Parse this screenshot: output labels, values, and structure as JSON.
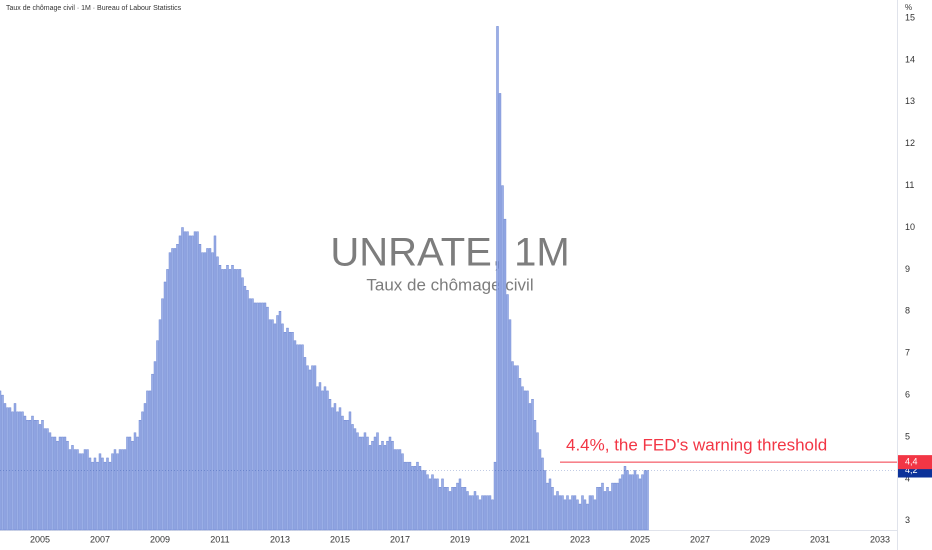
{
  "chart_data": {
    "type": "bar",
    "header": "Taux de chômage civil · 1M · Bureau of Labour Statistics",
    "title": "UNRATE, 1M",
    "subtitle": "Taux de chômage civil",
    "y_unit": "%",
    "color": "#9aaee6",
    "edge_color": "#5d78cc",
    "grid": false,
    "xlim": [
      2003.667,
      2033.567
    ],
    "xticks": [
      2005,
      2007,
      2009,
      2011,
      2013,
      2015,
      2017,
      2019,
      2021,
      2023,
      2025,
      2027,
      2029,
      2031,
      2033
    ],
    "ylim": [
      2.78,
      15.43
    ],
    "yticks": [
      3,
      4,
      5,
      6,
      7,
      8,
      9,
      10,
      11,
      12,
      13,
      14,
      15
    ],
    "x": [
      2003.667,
      2003.75,
      2003.833,
      2003.917,
      2004,
      2004.083,
      2004.167,
      2004.25,
      2004.333,
      2004.417,
      2004.5,
      2004.583,
      2004.667,
      2004.75,
      2004.833,
      2004.917,
      2005,
      2005.083,
      2005.167,
      2005.25,
      2005.333,
      2005.417,
      2005.5,
      2005.583,
      2005.667,
      2005.75,
      2005.833,
      2005.917,
      2006,
      2006.083,
      2006.167,
      2006.25,
      2006.333,
      2006.417,
      2006.5,
      2006.583,
      2006.667,
      2006.75,
      2006.833,
      2006.917,
      2007,
      2007.083,
      2007.167,
      2007.25,
      2007.333,
      2007.417,
      2007.5,
      2007.583,
      2007.667,
      2007.75,
      2007.833,
      2007.917,
      2008,
      2008.083,
      2008.167,
      2008.25,
      2008.333,
      2008.417,
      2008.5,
      2008.583,
      2008.667,
      2008.75,
      2008.833,
      2008.917,
      2009,
      2009.083,
      2009.167,
      2009.25,
      2009.333,
      2009.417,
      2009.5,
      2009.583,
      2009.667,
      2009.75,
      2009.833,
      2009.917,
      2010,
      2010.083,
      2010.167,
      2010.25,
      2010.333,
      2010.417,
      2010.5,
      2010.583,
      2010.667,
      2010.75,
      2010.833,
      2010.917,
      2011,
      2011.083,
      2011.167,
      2011.25,
      2011.333,
      2011.417,
      2011.5,
      2011.583,
      2011.667,
      2011.75,
      2011.833,
      2011.917,
      2012,
      2012.083,
      2012.167,
      2012.25,
      2012.333,
      2012.417,
      2012.5,
      2012.583,
      2012.667,
      2012.75,
      2012.833,
      2012.917,
      2013,
      2013.083,
      2013.167,
      2013.25,
      2013.333,
      2013.417,
      2013.5,
      2013.583,
      2013.667,
      2013.75,
      2013.833,
      2013.917,
      2014,
      2014.083,
      2014.167,
      2014.25,
      2014.333,
      2014.417,
      2014.5,
      2014.583,
      2014.667,
      2014.75,
      2014.833,
      2014.917,
      2015,
      2015.083,
      2015.167,
      2015.25,
      2015.333,
      2015.417,
      2015.5,
      2015.583,
      2015.667,
      2015.75,
      2015.833,
      2015.917,
      2016,
      2016.083,
      2016.167,
      2016.25,
      2016.333,
      2016.417,
      2016.5,
      2016.583,
      2016.667,
      2016.75,
      2016.833,
      2016.917,
      2017,
      2017.083,
      2017.167,
      2017.25,
      2017.333,
      2017.417,
      2017.5,
      2017.583,
      2017.667,
      2017.75,
      2017.833,
      2017.917,
      2018,
      2018.083,
      2018.167,
      2018.25,
      2018.333,
      2018.417,
      2018.5,
      2018.583,
      2018.667,
      2018.75,
      2018.833,
      2018.917,
      2019,
      2019.083,
      2019.167,
      2019.25,
      2019.333,
      2019.417,
      2019.5,
      2019.583,
      2019.667,
      2019.75,
      2019.833,
      2019.917,
      2020,
      2020.083,
      2020.167,
      2020.25,
      2020.333,
      2020.417,
      2020.5,
      2020.583,
      2020.667,
      2020.75,
      2020.833,
      2020.917,
      2021,
      2021.083,
      2021.167,
      2021.25,
      2021.333,
      2021.417,
      2021.5,
      2021.583,
      2021.667,
      2021.75,
      2021.833,
      2021.917,
      2022,
      2022.083,
      2022.167,
      2022.25,
      2022.333,
      2022.417,
      2022.5,
      2022.583,
      2022.667,
      2022.75,
      2022.833,
      2022.917,
      2023,
      2023.083,
      2023.167,
      2023.25,
      2023.333,
      2023.417,
      2023.5,
      2023.583,
      2023.667,
      2023.75,
      2023.833,
      2023.917,
      2024,
      2024.083,
      2024.167,
      2024.25,
      2024.333,
      2024.417,
      2024.5,
      2024.583,
      2024.667,
      2024.75,
      2024.833,
      2024.917,
      2025,
      2025.083,
      2025.167,
      2025.25
    ],
    "values": [
      6.1,
      6.0,
      5.8,
      5.7,
      5.7,
      5.6,
      5.8,
      5.6,
      5.6,
      5.6,
      5.5,
      5.4,
      5.4,
      5.5,
      5.4,
      5.4,
      5.3,
      5.4,
      5.2,
      5.2,
      5.1,
      5.0,
      5.0,
      4.9,
      5.0,
      5.0,
      5.0,
      4.9,
      4.7,
      4.8,
      4.7,
      4.7,
      4.6,
      4.6,
      4.7,
      4.7,
      4.5,
      4.4,
      4.5,
      4.4,
      4.6,
      4.5,
      4.4,
      4.5,
      4.4,
      4.6,
      4.7,
      4.6,
      4.7,
      4.7,
      4.7,
      5.0,
      5.0,
      4.9,
      5.1,
      5.0,
      5.4,
      5.6,
      5.8,
      6.1,
      6.1,
      6.5,
      6.8,
      7.3,
      7.8,
      8.3,
      8.7,
      9.0,
      9.4,
      9.5,
      9.5,
      9.6,
      9.8,
      10.0,
      9.9,
      9.9,
      9.8,
      9.8,
      9.9,
      9.9,
      9.6,
      9.4,
      9.4,
      9.5,
      9.5,
      9.4,
      9.8,
      9.3,
      9.1,
      9.0,
      9.0,
      9.1,
      9.0,
      9.1,
      9.0,
      9.0,
      9.0,
      8.8,
      8.6,
      8.5,
      8.3,
      8.3,
      8.2,
      8.2,
      8.2,
      8.2,
      8.2,
      8.1,
      7.8,
      7.8,
      7.7,
      7.9,
      8.0,
      7.7,
      7.5,
      7.6,
      7.5,
      7.5,
      7.3,
      7.2,
      7.2,
      7.2,
      6.9,
      6.7,
      6.6,
      6.7,
      6.7,
      6.2,
      6.3,
      6.1,
      6.2,
      6.1,
      5.9,
      5.7,
      5.8,
      5.6,
      5.7,
      5.5,
      5.4,
      5.4,
      5.6,
      5.3,
      5.2,
      5.1,
      5.0,
      5.0,
      5.1,
      5.0,
      4.8,
      4.9,
      5.0,
      5.1,
      4.8,
      4.9,
      4.8,
      4.9,
      5.0,
      4.9,
      4.7,
      4.7,
      4.7,
      4.6,
      4.4,
      4.4,
      4.4,
      4.3,
      4.3,
      4.4,
      4.3,
      4.2,
      4.2,
      4.1,
      4.0,
      4.1,
      4.0,
      4.0,
      3.8,
      4.0,
      3.8,
      3.8,
      3.7,
      3.8,
      3.8,
      3.9,
      4.0,
      3.8,
      3.8,
      3.7,
      3.6,
      3.6,
      3.7,
      3.6,
      3.5,
      3.6,
      3.6,
      3.6,
      3.6,
      3.5,
      4.4,
      14.8,
      13.2,
      11.0,
      10.2,
      8.4,
      7.8,
      6.8,
      6.7,
      6.7,
      6.4,
      6.2,
      6.1,
      6.1,
      5.8,
      5.9,
      5.4,
      5.1,
      4.7,
      4.5,
      4.2,
      3.9,
      4.0,
      3.8,
      3.6,
      3.7,
      3.6,
      3.6,
      3.5,
      3.6,
      3.5,
      3.6,
      3.6,
      3.5,
      3.4,
      3.6,
      3.5,
      3.4,
      3.6,
      3.6,
      3.5,
      3.8,
      3.8,
      3.9,
      3.7,
      3.8,
      3.7,
      3.9,
      3.9,
      3.9,
      4.0,
      4.1,
      4.3,
      4.2,
      4.1,
      4.1,
      4.2,
      4.1,
      4.0,
      4.1,
      4.2,
      4.2
    ],
    "threshold": {
      "value": 4.4,
      "label": "4,4",
      "text": "4.4%, the FED's warning threshold",
      "color": "#f23645"
    },
    "last_value": {
      "value": 4.2,
      "label": "4,2",
      "color": "#0c3299"
    }
  }
}
